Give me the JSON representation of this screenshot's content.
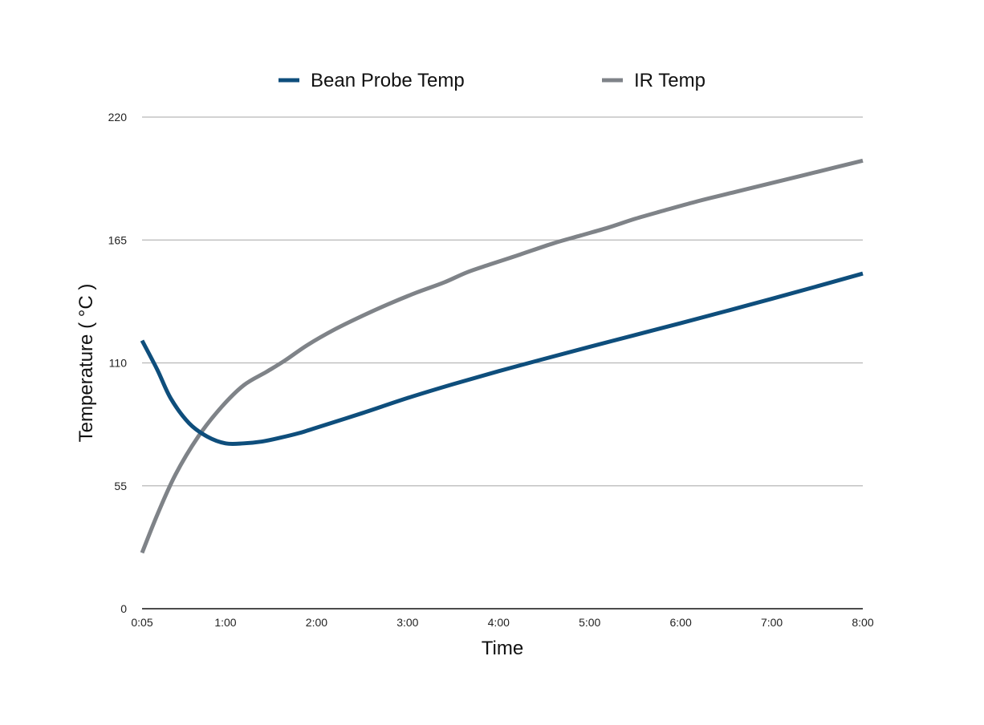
{
  "chart_data": {
    "type": "line",
    "title": "",
    "xlabel": "Time",
    "ylabel": "Temperature ( °C )",
    "x_ticks": [
      "0:05",
      "1:00",
      "2:00",
      "3:00",
      "4:00",
      "5:00",
      "6:00",
      "7:00",
      "8:00"
    ],
    "x_tick_minutes": [
      0.0833,
      1,
      2,
      3,
      4,
      5,
      6,
      7,
      8
    ],
    "xlim_minutes": [
      0.0833,
      8
    ],
    "y_ticks": [
      0,
      55,
      110,
      165,
      220
    ],
    "ylim": [
      0,
      220
    ],
    "grid": true,
    "legend_position": "top-center",
    "series": [
      {
        "name": "Bean Probe Temp",
        "color": "#0e4e7c",
        "x_minutes": [
          0.0833,
          0.25,
          0.4,
          0.6,
          0.8,
          1.0,
          1.2,
          1.4,
          1.6,
          1.8,
          2.0,
          2.5,
          3.0,
          3.5,
          4.0,
          4.5,
          5.0,
          5.5,
          6.0,
          6.5,
          7.0,
          7.5,
          8.0
        ],
        "values": [
          120,
          107,
          94,
          83,
          77,
          74,
          74,
          74.8,
          76.5,
          78.5,
          81,
          87.5,
          94.3,
          100.5,
          106.3,
          111.8,
          117.2,
          122.5,
          127.8,
          133.2,
          138.7,
          144.3,
          150
        ]
      },
      {
        "name": "IR Temp",
        "color": "#7f8388",
        "x_minutes": [
          0.0833,
          0.25,
          0.45,
          0.7,
          0.95,
          1.2,
          1.45,
          1.65,
          1.9,
          2.2,
          2.5,
          2.8,
          3.1,
          3.4,
          3.65,
          3.9,
          4.2,
          4.6,
          4.9,
          5.2,
          5.5,
          5.8,
          6.2,
          6.6,
          7.0,
          7.5,
          8.0
        ],
        "values": [
          25,
          42,
          60,
          77,
          90,
          100,
          106,
          111,
          118,
          125,
          131,
          136.5,
          141.5,
          146,
          150.5,
          154,
          158,
          163.5,
          167,
          170.5,
          174.5,
          178,
          182.5,
          186.5,
          190.5,
          195.5,
          200.5
        ]
      }
    ]
  }
}
